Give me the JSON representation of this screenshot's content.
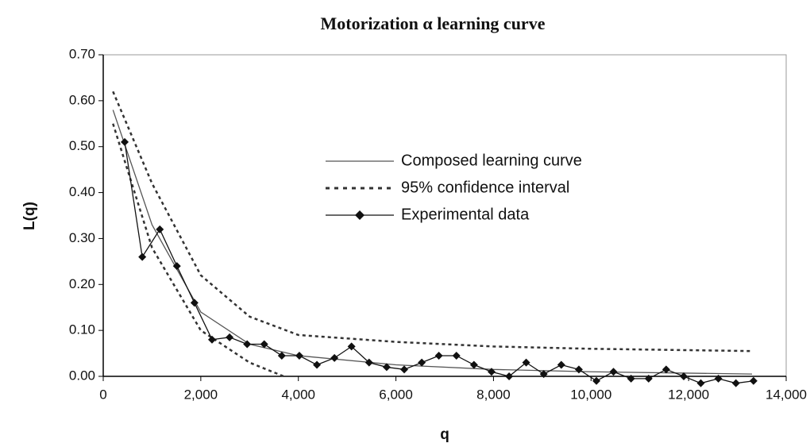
{
  "chart_data": {
    "type": "line",
    "title": "Motorization α learning curve",
    "xlabel": "q",
    "ylabel": "L(q)",
    "xlim": [
      0,
      14000
    ],
    "ylim": [
      0,
      0.7
    ],
    "xticks": [
      0,
      {
        "value": 2000,
        "label": "2,000"
      },
      {
        "value": 4000,
        "label": "4,000"
      },
      {
        "value": 6000,
        "label": "6,000"
      },
      {
        "value": 8000,
        "label": "8,000"
      },
      {
        "value": 10000,
        "label": "10,000"
      },
      {
        "value": 12000,
        "label": "12,000"
      },
      {
        "value": 14000,
        "label": "14,000"
      }
    ],
    "yticks": [
      {
        "value": 0,
        "label": "0.00"
      },
      {
        "value": 0.1,
        "label": "0.10"
      },
      {
        "value": 0.2,
        "label": "0.20"
      },
      {
        "value": 0.3,
        "label": "0.30"
      },
      {
        "value": 0.4,
        "label": "0.40"
      },
      {
        "value": 0.5,
        "label": "0.50"
      },
      {
        "value": 0.6,
        "label": "0.60"
      },
      {
        "value": 0.7,
        "label": "0.70"
      }
    ],
    "grid": false,
    "series": [
      {
        "name": "Composed learning curve",
        "color": "#555555",
        "style": "solid",
        "marker": "none",
        "x": [
          200,
          1000,
          2000,
          3000,
          4000,
          6000,
          8000,
          10000,
          13300
        ],
        "values": [
          0.58,
          0.33,
          0.14,
          0.07,
          0.045,
          0.025,
          0.015,
          0.01,
          0.005
        ]
      },
      {
        "name": "95% confidence interval",
        "color": "#333333",
        "style": "dotted",
        "marker": "none",
        "x": [
          200,
          1000,
          2000,
          3000,
          4000,
          6000,
          8000,
          10000,
          13300
        ],
        "values": [
          0.62,
          0.42,
          0.22,
          0.13,
          0.09,
          0.075,
          0.065,
          0.06,
          0.055
        ]
      },
      {
        "name": null,
        "color": "#333333",
        "style": "dotted",
        "marker": "none",
        "x": [
          200,
          1000,
          2000,
          3000,
          3700
        ],
        "values": [
          0.55,
          0.28,
          0.1,
          0.03,
          0
        ]
      },
      {
        "name": "Experimental data",
        "color": "#111111",
        "style": "solid",
        "marker": "diamond",
        "x": [
          440,
          800,
          1160,
          1510,
          1870,
          2230,
          2590,
          2950,
          3300,
          3660,
          4020,
          4380,
          4740,
          5090,
          5450,
          5810,
          6170,
          6530,
          6880,
          7240,
          7600,
          7960,
          8320,
          8670,
          9030,
          9390,
          9750,
          10110,
          10460,
          10820,
          11180,
          11540,
          11900,
          12250,
          12610,
          12970,
          13330
        ],
        "values": [
          0.51,
          0.26,
          0.32,
          0.24,
          0.16,
          0.08,
          0.085,
          0.07,
          0.07,
          0.045,
          0.045,
          0.025,
          0.04,
          0.065,
          0.03,
          0.02,
          0.015,
          0.03,
          0.045,
          0.045,
          0.025,
          0.01,
          0.0,
          0.03,
          0.005,
          0.025,
          0.015,
          -0.01,
          0.01,
          -0.005,
          -0.005,
          0.015,
          0.0,
          -0.015,
          -0.005,
          -0.015,
          -0.01
        ]
      }
    ]
  }
}
